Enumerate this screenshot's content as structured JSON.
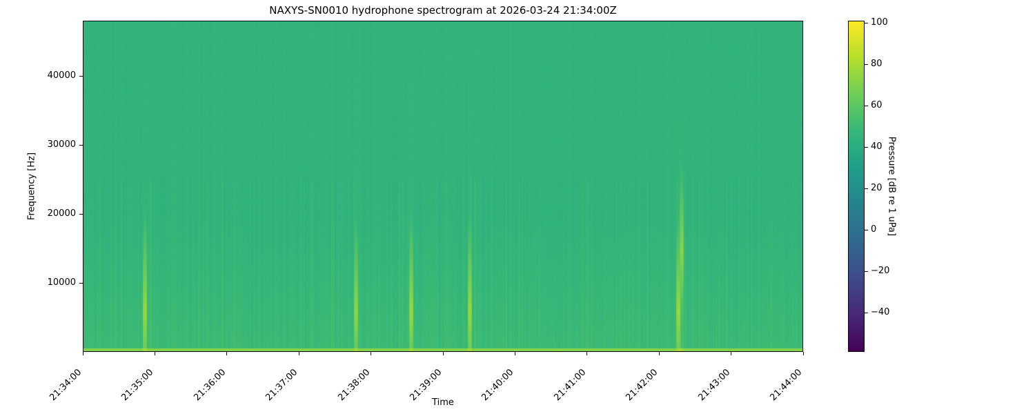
{
  "chart_data": {
    "type": "heatmap",
    "title": "NAXYS-SN0010 hydrophone spectrogram at 2026-03-24 21:34:00Z",
    "xlabel": "Time",
    "ylabel": "Frequency [Hz]",
    "colorbar_label": "Pressure [dB re 1 uPa]",
    "colormap": "viridis",
    "xlim": [
      "21:34:00",
      "21:44:00"
    ],
    "ylim": [
      0,
      48000
    ],
    "clim": [
      -59,
      101
    ],
    "x_ticks": [
      "21:34:00",
      "21:35:00",
      "21:36:00",
      "21:37:00",
      "21:38:00",
      "21:39:00",
      "21:40:00",
      "21:41:00",
      "21:42:00",
      "21:43:00",
      "21:44:00"
    ],
    "y_ticks": [
      10000,
      20000,
      30000,
      40000
    ],
    "colorbar_ticks": [
      -40,
      -20,
      0,
      20,
      40,
      60,
      80,
      100
    ],
    "background_level_db": 45,
    "low_frequency_band": {
      "max_hz": 500,
      "level_db": 72
    },
    "events": [
      {
        "time": "21:34:51",
        "peak_hz": 5800,
        "level_db": 78
      },
      {
        "time": "21:37:47",
        "peak_hz": 5800,
        "level_db": 76
      },
      {
        "time": "21:38:33",
        "peak_hz": 5800,
        "level_db": 78
      },
      {
        "time": "21:39:22",
        "peak_hz": 5800,
        "level_db": 78
      },
      {
        "time": "21:42:16",
        "peak_hz": 5800,
        "level_db": 78
      },
      {
        "time": "21:42:19",
        "peak_hz": 14500,
        "level_db": 74
      }
    ]
  }
}
